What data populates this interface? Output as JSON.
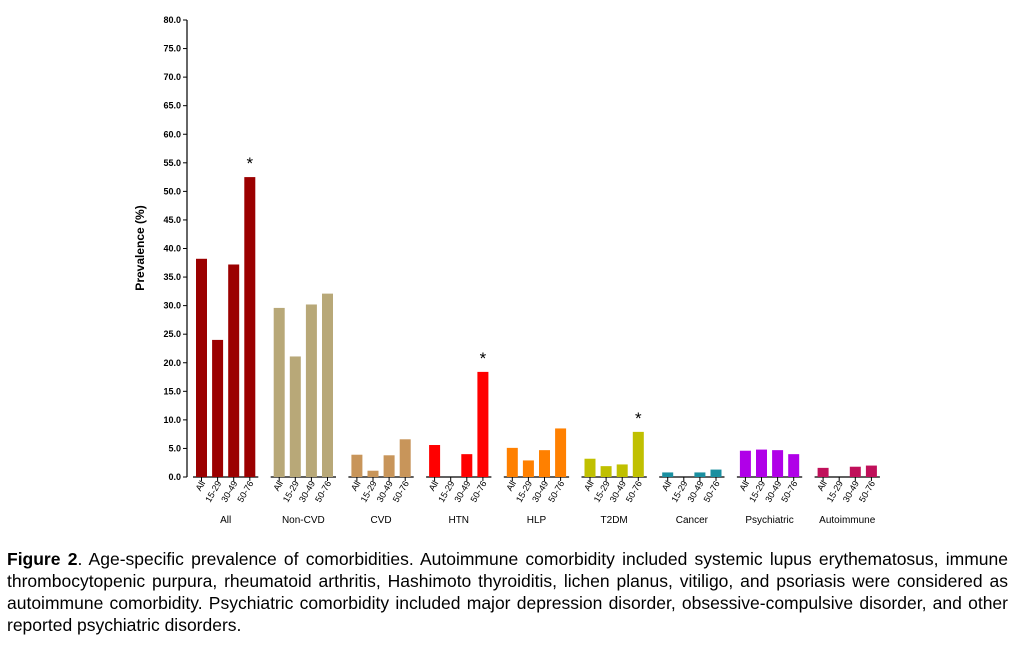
{
  "chart_data": {
    "type": "bar",
    "ylabel": "Prevalence (%)",
    "ylim": [
      0,
      80
    ],
    "yticks": [
      "0.0",
      "5.0",
      "10.0",
      "15.0",
      "20.0",
      "25.0",
      "30.0",
      "35.0",
      "40.0",
      "45.0",
      "50.0",
      "55.0",
      "60.0",
      "65.0",
      "70.0",
      "75.0",
      "80.0"
    ],
    "age_groups": [
      "All",
      "15-29",
      "30-49",
      "50-76"
    ],
    "groups": [
      {
        "name": "All",
        "color": "#9b0000",
        "values": [
          38.2,
          24.0,
          37.2,
          52.5
        ],
        "star": "*"
      },
      {
        "name": "Non-CVD",
        "color": "#b8a878",
        "values": [
          29.6,
          21.1,
          30.2,
          32.1
        ],
        "star": ""
      },
      {
        "name": "CVD",
        "color": "#c8955a",
        "values": [
          3.9,
          1.1,
          3.8,
          6.6
        ],
        "star": ""
      },
      {
        "name": "HTN",
        "color": "#ff0000",
        "values": [
          5.6,
          0.0,
          4.0,
          18.4
        ],
        "star": "*"
      },
      {
        "name": "HLP",
        "color": "#ff8000",
        "values": [
          5.1,
          2.9,
          4.7,
          8.5
        ],
        "star": ""
      },
      {
        "name": "T2DM",
        "color": "#c0c000",
        "values": [
          3.2,
          1.9,
          2.2,
          7.9
        ],
        "star": "*"
      },
      {
        "name": "Cancer",
        "color": "#1a8fa0",
        "values": [
          0.8,
          0.0,
          0.8,
          1.3
        ],
        "star": ""
      },
      {
        "name": "Psychiatric",
        "color": "#b000e8",
        "values": [
          4.6,
          4.8,
          4.7,
          4.0
        ],
        "star": ""
      },
      {
        "name": "Autoimmune",
        "color": "#c0105a",
        "values": [
          1.6,
          0.0,
          1.8,
          2.0
        ],
        "star": ""
      }
    ]
  },
  "caption": {
    "label": "Figure 2",
    "text": ". Age-specific prevalence of comorbidities. Autoimmune comorbidity included systemic lupus erythematosus, immune thrombocytopenic purpura, rheumatoid arthritis, Hashimoto thyroiditis, lichen planus, vitiligo, and psoriasis were considered as autoimmune comorbidity. Psychiatric comorbidity included major depression disorder, obsessive-compulsive disorder, and other reported psychiatric disorders."
  }
}
